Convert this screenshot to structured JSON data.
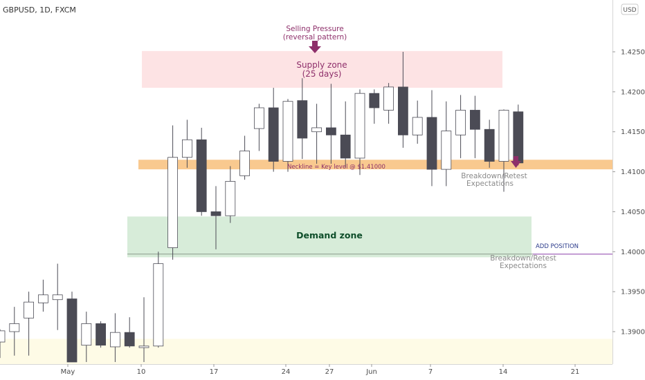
{
  "header": {
    "symbol": "GBPUSD, 1D, FXCM"
  },
  "currency_button": "USD",
  "colors": {
    "candle_up_fill": "#ffffff",
    "candle_up_border": "#4b4b55",
    "candle_down": "#4b4b55",
    "wick": "#4b4b55",
    "supply_zone": "#fde3e4",
    "demand_zone": "#d7ecd9",
    "neckline_band": "#f9c98f",
    "bottom_band": "#fefbe6",
    "annotation_purple": "#8e2f6a",
    "demand_text": "#0e4e2a",
    "add_position_line": "#b07cc6"
  },
  "annotations": {
    "selling_pressure_1": "Selling Pressure",
    "selling_pressure_2": "(reversal pattern)",
    "supply_zone_1": "Supply zone",
    "supply_zone_2": "(25 days)",
    "demand_zone": "Demand zone",
    "neckline": "Neckline = Key level @ $1.41000",
    "breakdown_1a": "Breakdown/Retest",
    "breakdown_1b": "Expectations",
    "breakdown_2a": "Breakdown/Retest",
    "breakdown_2b": "Expectations",
    "add_position": "ADD POSITION"
  },
  "chart_data": {
    "type": "candlestick",
    "title": "GBPUSD, 1D, FXCM",
    "y_axis_unit": "USD",
    "ylim": [
      1.3862,
      1.4328
    ],
    "y_ticks": [
      "1.39000",
      "1.39500",
      "1.40000",
      "1.40500",
      "1.41000",
      "1.41500",
      "1.42000",
      "1.42500"
    ],
    "x_ticks": [
      "May",
      "10",
      "17",
      "24",
      "27",
      "Jun",
      "7",
      "14",
      "21"
    ],
    "candles": [
      {
        "o": 1.3887,
        "h": 1.3903,
        "l": 1.3867,
        "c": 1.3901
      },
      {
        "o": 1.39,
        "h": 1.3931,
        "l": 1.387,
        "c": 1.391
      },
      {
        "o": 1.3917,
        "h": 1.395,
        "l": 1.387,
        "c": 1.3937
      },
      {
        "o": 1.3936,
        "h": 1.3965,
        "l": 1.3925,
        "c": 1.3946
      },
      {
        "o": 1.394,
        "h": 1.3985,
        "l": 1.3902,
        "c": 1.3946
      },
      {
        "o": 1.3941,
        "h": 1.395,
        "l": 1.3862,
        "c": 1.3862
      },
      {
        "o": 1.3883,
        "h": 1.3925,
        "l": 1.3862,
        "c": 1.391
      },
      {
        "o": 1.391,
        "h": 1.3913,
        "l": 1.388,
        "c": 1.3883
      },
      {
        "o": 1.3881,
        "h": 1.3923,
        "l": 1.3862,
        "c": 1.3899
      },
      {
        "o": 1.3899,
        "h": 1.3918,
        "l": 1.388,
        "c": 1.3882
      },
      {
        "o": 1.388,
        "h": 1.3943,
        "l": 1.3862,
        "c": 1.3882
      },
      {
        "o": 1.3882,
        "h": 1.4,
        "l": 1.388,
        "c": 1.3985
      },
      {
        "o": 1.4005,
        "h": 1.4158,
        "l": 1.399,
        "c": 1.4118
      },
      {
        "o": 1.4118,
        "h": 1.4165,
        "l": 1.4105,
        "c": 1.414
      },
      {
        "o": 1.414,
        "h": 1.4155,
        "l": 1.4045,
        "c": 1.405
      },
      {
        "o": 1.405,
        "h": 1.4082,
        "l": 1.4003,
        "c": 1.4045
      },
      {
        "o": 1.4045,
        "h": 1.4107,
        "l": 1.4036,
        "c": 1.4088
      },
      {
        "o": 1.4095,
        "h": 1.4145,
        "l": 1.409,
        "c": 1.4126
      },
      {
        "o": 1.4154,
        "h": 1.4185,
        "l": 1.4126,
        "c": 1.418
      },
      {
        "o": 1.418,
        "h": 1.4205,
        "l": 1.41,
        "c": 1.4113
      },
      {
        "o": 1.4113,
        "h": 1.4191,
        "l": 1.41,
        "c": 1.4188
      },
      {
        "o": 1.4189,
        "h": 1.4217,
        "l": 1.4116,
        "c": 1.4142
      },
      {
        "o": 1.415,
        "h": 1.4185,
        "l": 1.411,
        "c": 1.4155
      },
      {
        "o": 1.4155,
        "h": 1.421,
        "l": 1.411,
        "c": 1.4146
      },
      {
        "o": 1.4146,
        "h": 1.4188,
        "l": 1.4105,
        "c": 1.4117
      },
      {
        "o": 1.4117,
        "h": 1.4203,
        "l": 1.4096,
        "c": 1.4198
      },
      {
        "o": 1.4198,
        "h": 1.4203,
        "l": 1.416,
        "c": 1.418
      },
      {
        "o": 1.4177,
        "h": 1.4211,
        "l": 1.416,
        "c": 1.4206
      },
      {
        "o": 1.4206,
        "h": 1.425,
        "l": 1.413,
        "c": 1.4146
      },
      {
        "o": 1.4146,
        "h": 1.4189,
        "l": 1.4135,
        "c": 1.4168
      },
      {
        "o": 1.4168,
        "h": 1.4202,
        "l": 1.4082,
        "c": 1.4103
      },
      {
        "o": 1.4103,
        "h": 1.4188,
        "l": 1.4082,
        "c": 1.4151
      },
      {
        "o": 1.4146,
        "h": 1.4196,
        "l": 1.4117,
        "c": 1.4177
      },
      {
        "o": 1.4177,
        "h": 1.4195,
        "l": 1.4117,
        "c": 1.4153
      },
      {
        "o": 1.4153,
        "h": 1.4165,
        "l": 1.4105,
        "c": 1.4113
      },
      {
        "o": 1.4113,
        "h": 1.4178,
        "l": 1.4075,
        "c": 1.4177
      },
      {
        "o": 1.4175,
        "h": 1.4184,
        "l": 1.4108,
        "c": 1.4111
      }
    ],
    "zones": {
      "supply": [
        1.4205,
        1.4251
      ],
      "demand": [
        1.3993,
        1.4044
      ],
      "neckline": [
        1.4103,
        1.4115
      ],
      "bottom_band": [
        1.386,
        1.3891
      ],
      "add_position_level": 1.3997
    }
  }
}
